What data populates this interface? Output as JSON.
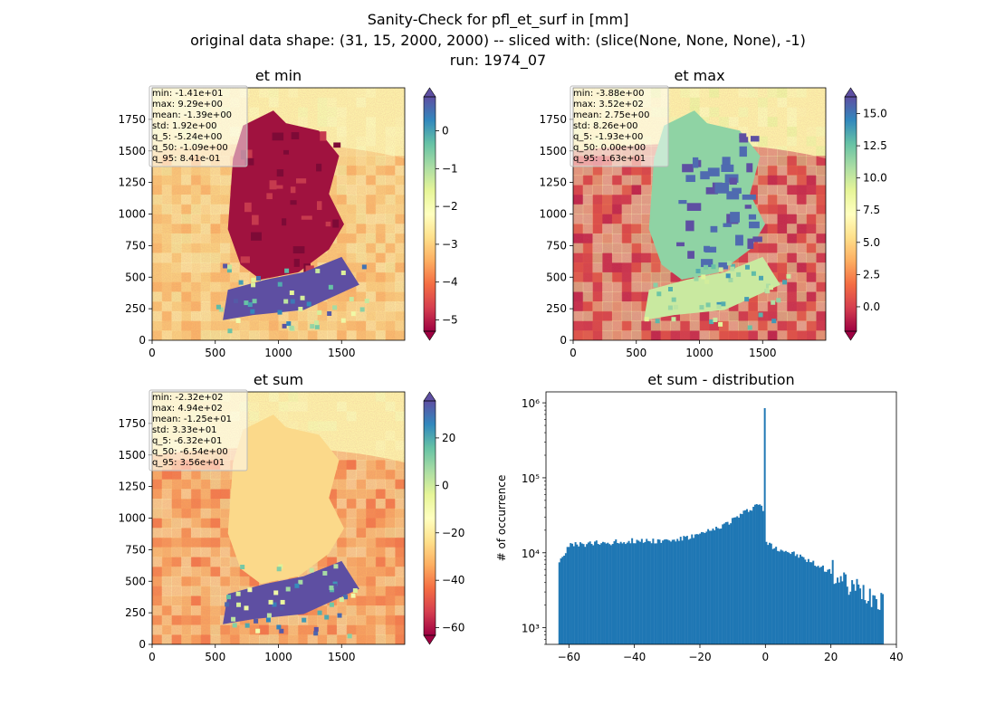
{
  "figure": {
    "title_lines": [
      "Sanity-Check for pfl_et_surf in [mm]",
      "original data shape: (31, 15, 2000, 2000) -- sliced with: (slice(None, None, None), -1)",
      "run: 1974_07"
    ]
  },
  "chart_data": [
    {
      "type": "heatmap",
      "title": "et min",
      "xticks": [
        "0",
        "500",
        "1000",
        "1500"
      ],
      "xtick_values": [
        0,
        500,
        1000,
        1500
      ],
      "yticks": [
        "0",
        "250",
        "500",
        "750",
        "1000",
        "1250",
        "1500",
        "1750"
      ],
      "ytick_values": [
        0,
        250,
        500,
        750,
        1000,
        1250,
        1500,
        1750
      ],
      "xlim": [
        0,
        2000
      ],
      "ylim": [
        0,
        2000
      ],
      "colormap": "Spectral",
      "colorbar": {
        "ticks": [
          "0",
          "−1",
          "−2",
          "−3",
          "−4",
          "−5"
        ],
        "tick_values": [
          0,
          -1,
          -2,
          -3,
          -4,
          -5
        ],
        "range": [
          -5.3,
          0.9
        ],
        "extend": "both"
      },
      "stats": [
        "min: -1.41e+01",
        "max: 9.29e+00",
        "mean: -1.39e+00",
        "std: 1.92e+00",
        "q_5: -5.24e+00",
        "q_50: -1.09e+00",
        "q_95: 8.41e-01"
      ]
    },
    {
      "type": "heatmap",
      "title": "et max",
      "xticks": [
        "0",
        "500",
        "1000",
        "1500"
      ],
      "xtick_values": [
        0,
        500,
        1000,
        1500
      ],
      "yticks": [
        "0",
        "250",
        "500",
        "750",
        "1000",
        "1250",
        "1500",
        "1750"
      ],
      "ytick_values": [
        0,
        250,
        500,
        750,
        1000,
        1250,
        1500,
        1750
      ],
      "xlim": [
        0,
        2000
      ],
      "ylim": [
        0,
        2000
      ],
      "colormap": "Spectral",
      "colorbar": {
        "ticks": [
          "15.0",
          "12.5",
          "10.0",
          "7.5",
          "5.0",
          "2.5",
          "0.0"
        ],
        "tick_values": [
          15,
          12.5,
          10,
          7.5,
          5,
          2.5,
          0
        ],
        "range": [
          -1.9,
          16.3
        ],
        "extend": "both"
      },
      "stats": [
        "min: -3.88e+00",
        "max: 3.52e+02",
        "mean: 2.75e+00",
        "std: 8.26e+00",
        "q_5: -1.93e+00",
        "q_50: 0.00e+00",
        "q_95: 1.63e+01"
      ]
    },
    {
      "type": "heatmap",
      "title": "et sum",
      "xticks": [
        "0",
        "500",
        "1000",
        "1500"
      ],
      "xtick_values": [
        0,
        500,
        1000,
        1500
      ],
      "yticks": [
        "0",
        "250",
        "500",
        "750",
        "1000",
        "1250",
        "1500",
        "1750"
      ],
      "ytick_values": [
        0,
        250,
        500,
        750,
        1000,
        1250,
        1500,
        1750
      ],
      "xlim": [
        0,
        2000
      ],
      "ylim": [
        0,
        2000
      ],
      "colormap": "Spectral",
      "colorbar": {
        "ticks": [
          "20",
          "0",
          "−20",
          "−40",
          "−60"
        ],
        "tick_values": [
          20,
          0,
          -20,
          -40,
          -60
        ],
        "range": [
          -63.2,
          35.6
        ],
        "extend": "both"
      },
      "stats": [
        "min: -2.32e+02",
        "max: 4.94e+02",
        "mean: -1.25e+01",
        "std: 3.33e+01",
        "q_5: -6.32e+01",
        "q_50: -6.54e+00",
        "q_95: 3.56e+01"
      ]
    },
    {
      "type": "bar",
      "title": "et sum - distribution",
      "ylabel": "# of occurrence",
      "xlabel": "",
      "yscale": "log",
      "xlim": [
        -67,
        40
      ],
      "ylim": [
        600,
        1400000
      ],
      "xticks": [
        "−60",
        "−40",
        "−20",
        "0",
        "20",
        "40"
      ],
      "xtick_values": [
        -60,
        -40,
        -20,
        0,
        20,
        40
      ],
      "yticks_major": [
        "10³",
        "10⁴",
        "10⁵",
        "10⁶"
      ],
      "ytick_values": [
        1000,
        10000,
        100000,
        1000000
      ],
      "color": "#1f77b4",
      "series": [
        {
          "values": [
            [
              -63,
              8000
            ],
            [
              -60,
              12500
            ],
            [
              -55,
              13000
            ],
            [
              -50,
              13500
            ],
            [
              -45,
              14000
            ],
            [
              -40,
              14500
            ],
            [
              -35,
              14500
            ],
            [
              -30,
              14500
            ],
            [
              -25,
              15500
            ],
            [
              -20,
              17500
            ],
            [
              -15,
              21000
            ],
            [
              -10,
              28000
            ],
            [
              -5,
              38000
            ],
            [
              -2,
              47000
            ],
            [
              -1,
              35000
            ],
            [
              -0.5,
              850000
            ],
            [
              0,
              14000
            ],
            [
              2,
              12000
            ],
            [
              5,
              11000
            ],
            [
              10,
              9000
            ],
            [
              15,
              7000
            ],
            [
              20,
              5500
            ],
            [
              25,
              3500
            ],
            [
              30,
              3000
            ],
            [
              35,
              2500
            ],
            [
              35.6,
              3500
            ]
          ]
        }
      ]
    }
  ]
}
